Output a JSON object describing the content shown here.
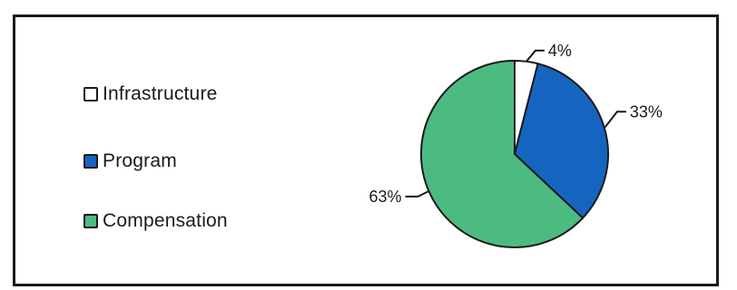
{
  "chart_data": {
    "type": "pie",
    "title": "",
    "categories": [
      "Infrastructure",
      "Program",
      "Compensation"
    ],
    "values": [
      4,
      33,
      63
    ],
    "data_labels": [
      "4%",
      "33%",
      "63%"
    ],
    "colors": [
      "#ffffff",
      "#1565c0",
      "#4cbb82"
    ],
    "start_angle_deg": -90,
    "direction": "clockwise",
    "legend_position": "left"
  }
}
